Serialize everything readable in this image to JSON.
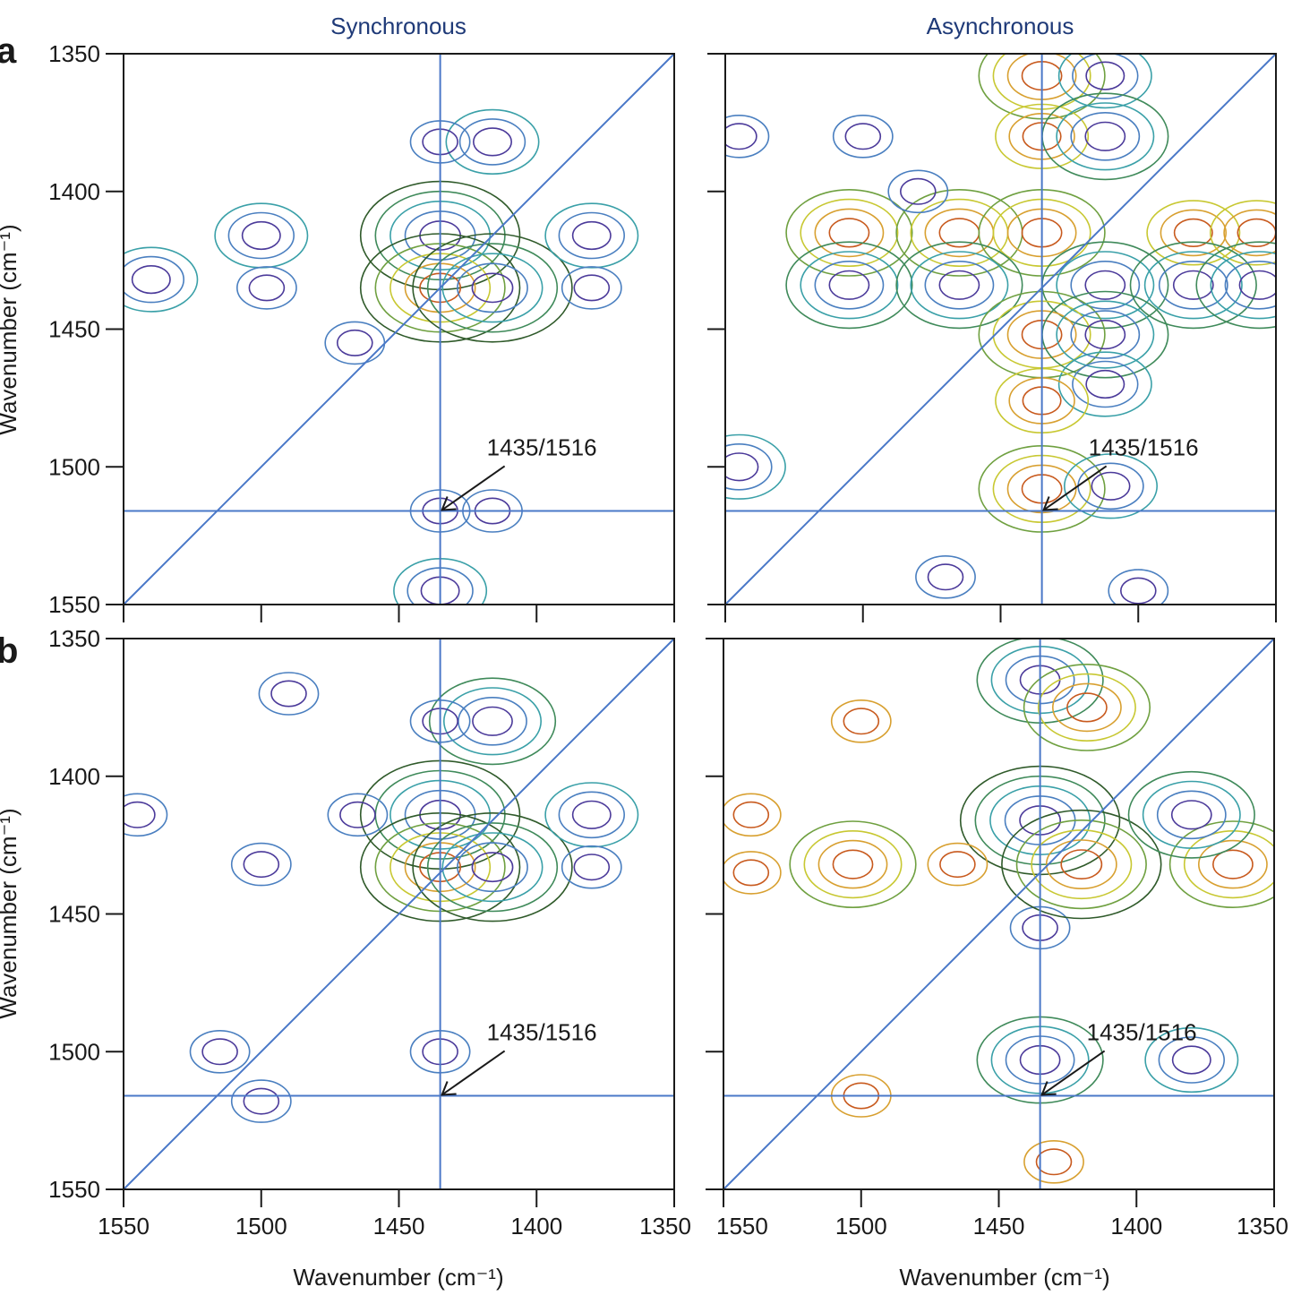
{
  "colors": {
    "guide_line": "#4a78c8",
    "frame": "#1a1a1a",
    "title": "#1f3a78",
    "contour_outer": "#2f5a2a",
    "contour_mid": "#3aa0a8",
    "contour_inner": "#4b3a9a",
    "contour_warm_mid": "#c8c832",
    "contour_warm_inner": "#c85a1e"
  },
  "chart_data": [
    {
      "id": "a-sync",
      "row_letter": "a",
      "type": "contour",
      "title": "Synchronous",
      "xlabel": "",
      "ylabel": "Wavenumber (cm⁻¹)",
      "xlim": [
        1550,
        1350
      ],
      "ylim": [
        1350,
        1550
      ],
      "x_ticks": [
        1550,
        1500,
        1450,
        1400,
        1350
      ],
      "y_ticks": [
        1350,
        1400,
        1450,
        1500,
        1550
      ],
      "x_tick_labels": [],
      "y_tick_labels": [
        "1350",
        "1400",
        "1450",
        "1500",
        "1550"
      ],
      "diagonal": true,
      "guide_x": 1435,
      "guide_y": 1516,
      "annotation": {
        "text": "1435/1516",
        "x": 1435,
        "y": 1516
      },
      "peaks": [
        {
          "x": 1435,
          "y": 1416,
          "sign": "negative",
          "strength": 4
        },
        {
          "x": 1435,
          "y": 1435,
          "sign": "positive",
          "strength": 4
        },
        {
          "x": 1416,
          "y": 1435,
          "sign": "negative",
          "strength": 4
        },
        {
          "x": 1416,
          "y": 1382,
          "sign": "negative",
          "strength": 2
        },
        {
          "x": 1435,
          "y": 1382,
          "sign": "negative",
          "strength": 1
        },
        {
          "x": 1500,
          "y": 1416,
          "sign": "negative",
          "strength": 2
        },
        {
          "x": 1380,
          "y": 1416,
          "sign": "negative",
          "strength": 2
        },
        {
          "x": 1540,
          "y": 1432,
          "sign": "negative",
          "strength": 2
        },
        {
          "x": 1498,
          "y": 1435,
          "sign": "negative",
          "strength": 1
        },
        {
          "x": 1380,
          "y": 1435,
          "sign": "negative",
          "strength": 1
        },
        {
          "x": 1416,
          "y": 1516,
          "sign": "negative",
          "strength": 1
        },
        {
          "x": 1435,
          "y": 1516,
          "sign": "negative",
          "strength": 1
        },
        {
          "x": 1435,
          "y": 1545,
          "sign": "negative",
          "strength": 2
        },
        {
          "x": 1466,
          "y": 1455,
          "sign": "negative",
          "strength": 1
        }
      ]
    },
    {
      "id": "a-async",
      "row_letter": "",
      "type": "contour",
      "title": "Asynchronous",
      "xlabel": "",
      "ylabel": "",
      "xlim": [
        1550,
        1350
      ],
      "ylim": [
        1350,
        1550
      ],
      "x_ticks": [
        1550,
        1500,
        1450,
        1400,
        1350
      ],
      "y_ticks": [
        1350,
        1400,
        1450,
        1500,
        1550
      ],
      "x_tick_labels": [],
      "y_tick_labels": [],
      "diagonal": true,
      "guide_x": 1435,
      "guide_y": 1516,
      "annotation": {
        "text": "1435/1516",
        "x": 1435,
        "y": 1516
      },
      "peaks": [
        {
          "x": 1435,
          "y": 1358,
          "sign": "positive",
          "strength": 3
        },
        {
          "x": 1412,
          "y": 1358,
          "sign": "negative",
          "strength": 2
        },
        {
          "x": 1435,
          "y": 1380,
          "sign": "positive",
          "strength": 2
        },
        {
          "x": 1412,
          "y": 1380,
          "sign": "negative",
          "strength": 3
        },
        {
          "x": 1505,
          "y": 1415,
          "sign": "positive",
          "strength": 3
        },
        {
          "x": 1465,
          "y": 1415,
          "sign": "positive",
          "strength": 3
        },
        {
          "x": 1435,
          "y": 1415,
          "sign": "positive",
          "strength": 3
        },
        {
          "x": 1380,
          "y": 1415,
          "sign": "positive",
          "strength": 2
        },
        {
          "x": 1357,
          "y": 1415,
          "sign": "positive",
          "strength": 2
        },
        {
          "x": 1505,
          "y": 1434,
          "sign": "negative",
          "strength": 3
        },
        {
          "x": 1465,
          "y": 1434,
          "sign": "negative",
          "strength": 3
        },
        {
          "x": 1412,
          "y": 1434,
          "sign": "negative",
          "strength": 3
        },
        {
          "x": 1380,
          "y": 1434,
          "sign": "negative",
          "strength": 3
        },
        {
          "x": 1356,
          "y": 1434,
          "sign": "negative",
          "strength": 3
        },
        {
          "x": 1435,
          "y": 1452,
          "sign": "positive",
          "strength": 3
        },
        {
          "x": 1412,
          "y": 1452,
          "sign": "negative",
          "strength": 3
        },
        {
          "x": 1412,
          "y": 1470,
          "sign": "negative",
          "strength": 2
        },
        {
          "x": 1435,
          "y": 1476,
          "sign": "positive",
          "strength": 2
        },
        {
          "x": 1435,
          "y": 1508,
          "sign": "positive",
          "strength": 3
        },
        {
          "x": 1410,
          "y": 1507,
          "sign": "negative",
          "strength": 2
        },
        {
          "x": 1545,
          "y": 1500,
          "sign": "negative",
          "strength": 2
        },
        {
          "x": 1480,
          "y": 1400,
          "sign": "negative",
          "strength": 1
        },
        {
          "x": 1545,
          "y": 1380,
          "sign": "negative",
          "strength": 1
        },
        {
          "x": 1500,
          "y": 1380,
          "sign": "negative",
          "strength": 1
        },
        {
          "x": 1470,
          "y": 1540,
          "sign": "negative",
          "strength": 1
        },
        {
          "x": 1400,
          "y": 1545,
          "sign": "negative",
          "strength": 1
        }
      ]
    },
    {
      "id": "b-sync",
      "row_letter": "b",
      "type": "contour",
      "title": "",
      "xlabel": "Wavenumber (cm⁻¹)",
      "ylabel": "Wavenumber (cm⁻¹)",
      "xlim": [
        1550,
        1350
      ],
      "ylim": [
        1350,
        1550
      ],
      "x_ticks": [
        1550,
        1500,
        1450,
        1400,
        1350
      ],
      "y_ticks": [
        1350,
        1400,
        1450,
        1500,
        1550
      ],
      "x_tick_labels": [
        "1550",
        "1500",
        "1450",
        "1400",
        "1350"
      ],
      "y_tick_labels": [
        "1350",
        "1400",
        "1450",
        "1500",
        "1550"
      ],
      "diagonal": true,
      "guide_x": 1435,
      "guide_y": 1516,
      "annotation": {
        "text": "1435/1516",
        "x": 1435,
        "y": 1516
      },
      "peaks": [
        {
          "x": 1435,
          "y": 1414,
          "sign": "negative",
          "strength": 4
        },
        {
          "x": 1435,
          "y": 1433,
          "sign": "positive",
          "strength": 4
        },
        {
          "x": 1416,
          "y": 1433,
          "sign": "negative",
          "strength": 4
        },
        {
          "x": 1416,
          "y": 1380,
          "sign": "negative",
          "strength": 3
        },
        {
          "x": 1435,
          "y": 1380,
          "sign": "negative",
          "strength": 1
        },
        {
          "x": 1500,
          "y": 1432,
          "sign": "negative",
          "strength": 1
        },
        {
          "x": 1380,
          "y": 1414,
          "sign": "negative",
          "strength": 2
        },
        {
          "x": 1380,
          "y": 1433,
          "sign": "negative",
          "strength": 1
        },
        {
          "x": 1490,
          "y": 1370,
          "sign": "negative",
          "strength": 1
        },
        {
          "x": 1435,
          "y": 1500,
          "sign": "negative",
          "strength": 1
        },
        {
          "x": 1515,
          "y": 1500,
          "sign": "negative",
          "strength": 1
        },
        {
          "x": 1500,
          "y": 1518,
          "sign": "negative",
          "strength": 1
        },
        {
          "x": 1545,
          "y": 1414,
          "sign": "negative",
          "strength": 1
        },
        {
          "x": 1465,
          "y": 1414,
          "sign": "negative",
          "strength": 1
        }
      ]
    },
    {
      "id": "b-async",
      "row_letter": "",
      "type": "contour",
      "title": "",
      "xlabel": "Wavenumber (cm⁻¹)",
      "ylabel": "",
      "xlim": [
        1550,
        1350
      ],
      "ylim": [
        1350,
        1550
      ],
      "x_ticks": [
        1550,
        1500,
        1450,
        1400,
        1350
      ],
      "y_ticks": [
        1350,
        1400,
        1450,
        1500,
        1550
      ],
      "x_tick_labels": [
        "1550",
        "1500",
        "1450",
        "1400",
        "1350"
      ],
      "y_tick_labels": [],
      "diagonal": true,
      "guide_x": 1435,
      "guide_y": 1516,
      "annotation": {
        "text": "1435/1516",
        "x": 1435,
        "y": 1516
      },
      "peaks": [
        {
          "x": 1435,
          "y": 1365,
          "sign": "negative",
          "strength": 3
        },
        {
          "x": 1435,
          "y": 1416,
          "sign": "negative",
          "strength": 4
        },
        {
          "x": 1435,
          "y": 1455,
          "sign": "negative",
          "strength": 1
        },
        {
          "x": 1418,
          "y": 1375,
          "sign": "positive",
          "strength": 3
        },
        {
          "x": 1420,
          "y": 1432,
          "sign": "positive",
          "strength": 4
        },
        {
          "x": 1365,
          "y": 1432,
          "sign": "positive",
          "strength": 3
        },
        {
          "x": 1503,
          "y": 1432,
          "sign": "positive",
          "strength": 3
        },
        {
          "x": 1380,
          "y": 1414,
          "sign": "negative",
          "strength": 3
        },
        {
          "x": 1465,
          "y": 1432,
          "sign": "positive",
          "strength": 1
        },
        {
          "x": 1500,
          "y": 1380,
          "sign": "positive",
          "strength": 1
        },
        {
          "x": 1435,
          "y": 1503,
          "sign": "negative",
          "strength": 3
        },
        {
          "x": 1380,
          "y": 1503,
          "sign": "negative",
          "strength": 2
        },
        {
          "x": 1500,
          "y": 1516,
          "sign": "positive",
          "strength": 1
        },
        {
          "x": 1430,
          "y": 1540,
          "sign": "positive",
          "strength": 1
        },
        {
          "x": 1540,
          "y": 1435,
          "sign": "positive",
          "strength": 1
        },
        {
          "x": 1540,
          "y": 1414,
          "sign": "positive",
          "strength": 1
        }
      ]
    }
  ]
}
